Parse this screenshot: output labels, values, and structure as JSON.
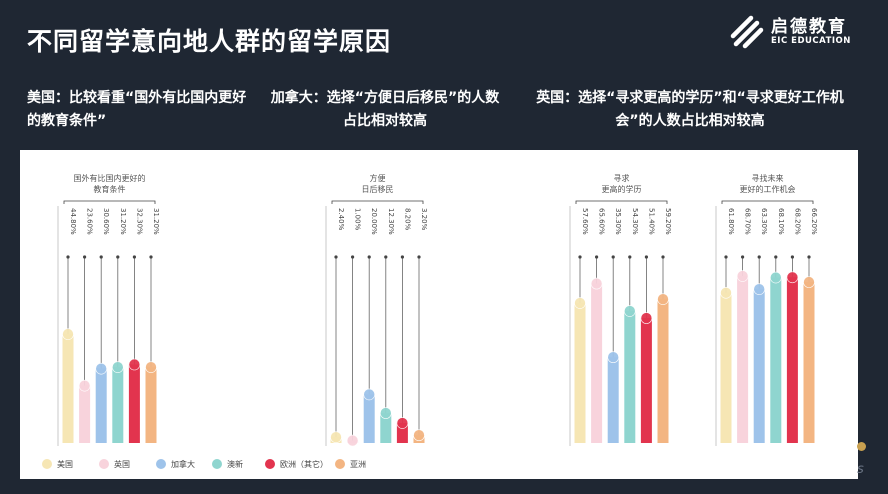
{
  "page": {
    "title": "不同留学意向地人群的留学原因",
    "logo_cn": "启德教育",
    "logo_en": "EIC EDUCATION",
    "headlines": [
      "美国：比较看重“国外有比国内更好的教育条件”",
      "加拿大：选择“方便日后移民”的人数占比相对较高",
      "英国：选择“寻求更高的学历”和“寻求更好工作机会”的人数占比相对较高"
    ],
    "deco_char": "s"
  },
  "colors": {
    "background": "#1f2733",
    "panel": "#ffffff"
  },
  "chart_data": {
    "type": "bar",
    "series": [
      {
        "name": "美国",
        "color": "#f6e6b4"
      },
      {
        "name": "英国",
        "color": "#f8d3dc"
      },
      {
        "name": "加拿大",
        "color": "#9ec3ea"
      },
      {
        "name": "澳新",
        "color": "#8fd5cf"
      },
      {
        "name": "欧洲（其它）",
        "color": "#e2344e"
      },
      {
        "name": "亚洲",
        "color": "#f3b582"
      }
    ],
    "groups": [
      {
        "label": [
          "国外有比国内更好的",
          "教育条件"
        ],
        "values": [
          44.8,
          23.6,
          30.6,
          31.2,
          32.3,
          31.2
        ],
        "labels": [
          "44.80%",
          "23.60%",
          "30.60%",
          "31.20%",
          "32.30%",
          "31.20%"
        ]
      },
      {
        "label": [
          "方便",
          "日后移民"
        ],
        "values": [
          2.4,
          1.0,
          20.0,
          12.3,
          8.2,
          3.2
        ],
        "labels": [
          "2.40%",
          "1.00%",
          "20.00%",
          "12.30%",
          "8.20%",
          "3.20%"
        ]
      },
      {
        "label": [
          "寻求",
          "更高的学历"
        ],
        "values": [
          57.6,
          65.6,
          35.3,
          54.3,
          51.4,
          59.2
        ],
        "labels": [
          "57.60%",
          "65.60%",
          "35.30%",
          "54.30%",
          "51.40%",
          "59.20%"
        ]
      },
      {
        "label": [
          "寻找未来",
          "更好的工作机会"
        ],
        "values": [
          61.8,
          68.7,
          63.3,
          68.1,
          68.2,
          66.2
        ],
        "labels": [
          "61.80%",
          "68.70%",
          "63.30%",
          "68.10%",
          "68.20%",
          "66.20%"
        ]
      }
    ],
    "ylim": [
      0,
      100
    ]
  }
}
